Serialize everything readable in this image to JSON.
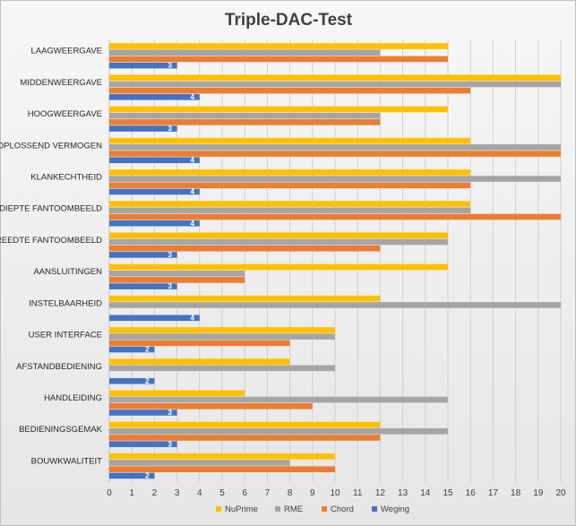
{
  "chart_data": {
    "type": "bar",
    "orientation": "horizontal",
    "title": "Triple-DAC-Test",
    "categories": [
      "LAAGWEERGAVE",
      "MIDDENWEERGAVE",
      "HOOGWEERGAVE",
      "OPLOSSEND VERMOGEN",
      "KLANKECHTHEID",
      "DIEPTE FANTOOMBEELD",
      "BREEDTE FANTOOMBEELD",
      "AANSLUITINGEN",
      "INSTELBAARHEID",
      "USER INTERFACE",
      "AFSTANDBEDIENING",
      "HANDLEIDING",
      "BEDIENINGSGEMAK",
      "BOUWKWALITEIT"
    ],
    "series": [
      {
        "name": "NuPrime",
        "color": "#ffc000",
        "values": [
          15,
          20,
          15,
          16,
          16,
          16,
          15,
          15,
          12,
          10,
          8,
          6,
          12,
          10
        ]
      },
      {
        "name": "RME",
        "color": "#a5a5a5",
        "values": [
          12,
          20,
          12,
          20,
          20,
          16,
          15,
          6,
          20,
          10,
          10,
          15,
          15,
          8
        ]
      },
      {
        "name": "Chord",
        "color": "#ed7d31",
        "values": [
          15,
          16,
          12,
          20,
          16,
          20,
          12,
          6,
          0,
          8,
          0,
          9,
          12,
          10
        ]
      },
      {
        "name": "Weging",
        "color": "#4472c4",
        "values": [
          3,
          4,
          3,
          4,
          4,
          4,
          3,
          3,
          4,
          2,
          2,
          3,
          3,
          2
        ],
        "data_labels": true
      }
    ],
    "xlim": [
      0,
      20
    ],
    "xticks": [
      "0",
      "1",
      "2",
      "3",
      "4",
      "5",
      "6",
      "7",
      "8",
      "9",
      "10",
      "11",
      "12",
      "13",
      "14",
      "15",
      "16",
      "17",
      "18",
      "19",
      "20"
    ],
    "xlabel": "",
    "ylabel": "",
    "grid": "vertical",
    "legend": "bottom"
  }
}
